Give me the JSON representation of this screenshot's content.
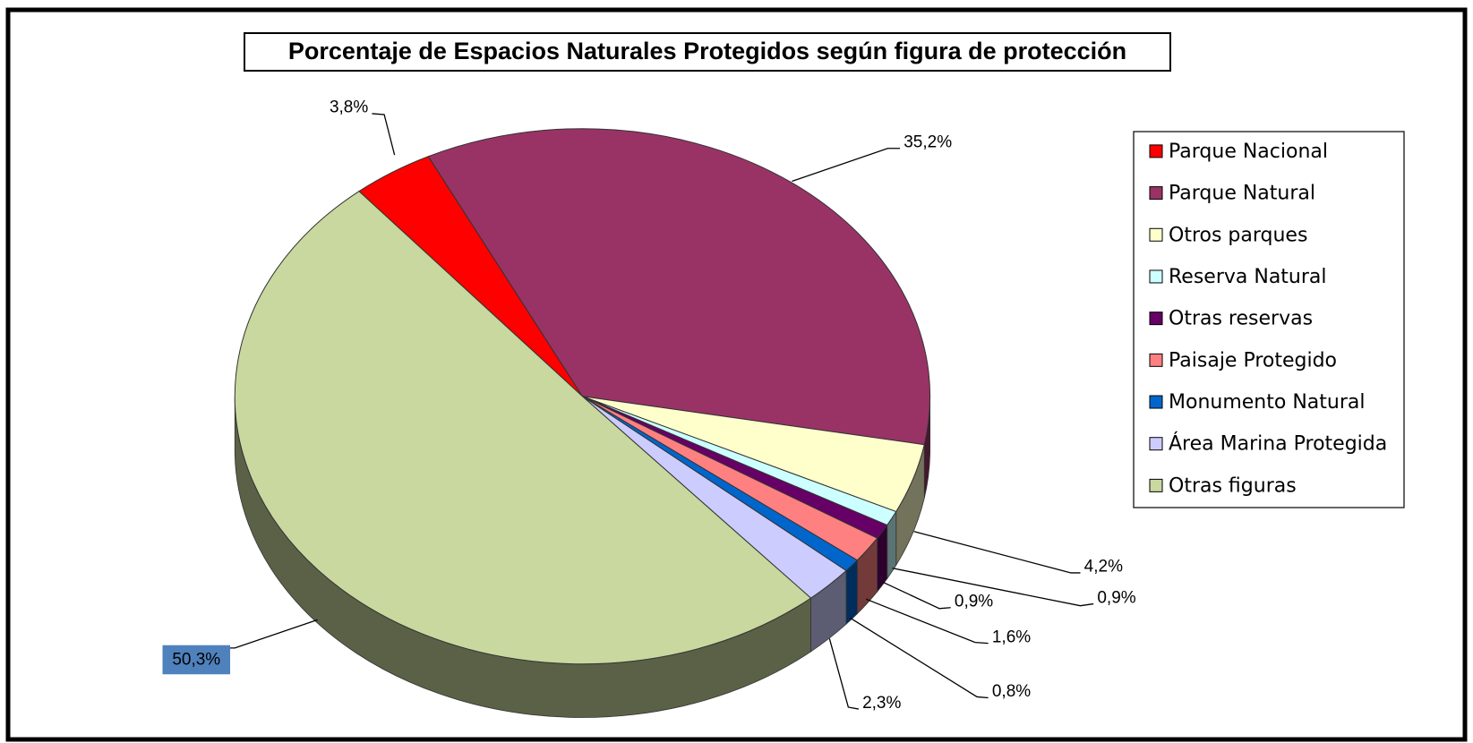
{
  "chart_data": {
    "type": "pie",
    "title": "Porcentaje de Espacios Naturales Protegidos según figura de protección",
    "categories": [
      "Parque Nacional",
      "Parque Natural",
      "Otros parques",
      "Reserva Natural",
      "Otras reservas",
      "Paisaje Protegido",
      "Monumento Natural",
      "Área Marina Protegida",
      "Otras figuras"
    ],
    "values": [
      3.8,
      35.2,
      4.2,
      0.9,
      0.9,
      1.6,
      0.8,
      2.3,
      50.3
    ],
    "value_labels": [
      "3,8%",
      "35,2%",
      "4,2%",
      "0,9%",
      "0,9%",
      "1,6%",
      "0,8%",
      "2,3%",
      "50,3%"
    ],
    "colors": [
      "#ff0000",
      "#993366",
      "#ffffcc",
      "#ccffff",
      "#660066",
      "#ff8080",
      "#0066cc",
      "#ccccff",
      "#c8d89e"
    ],
    "legend": "right"
  }
}
